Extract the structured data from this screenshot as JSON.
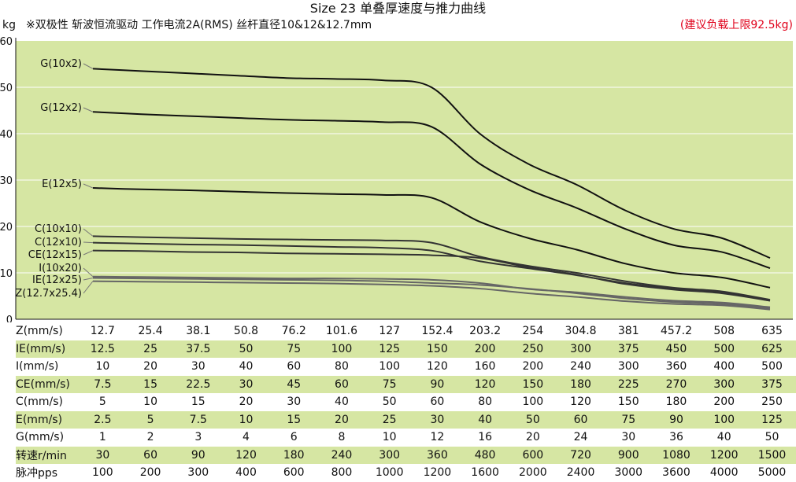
{
  "chart_data": {
    "type": "line",
    "title": "Size 23 单叠厚速度与推力曲线",
    "subtitle": "※双极性 斩波恒流驱动 工作电流2A(RMS) 丝杆直径10&12&12.7mm",
    "note": "(建议负载上限92.5kg)",
    "ylabel": "kg",
    "ylim": [
      0,
      60
    ],
    "yticks": [
      0,
      10,
      20,
      30,
      40,
      50,
      60
    ],
    "grid": true,
    "x_index": [
      0,
      1,
      2,
      3,
      4,
      5,
      6,
      7,
      8,
      9,
      10,
      11,
      12,
      13,
      14
    ],
    "series": [
      {
        "name": "G(10x2)",
        "values": [
          54,
          53.5,
          53,
          52.5,
          52,
          51.8,
          51.5,
          50,
          40,
          33.5,
          29,
          23.5,
          19.5,
          17.5,
          13.2
        ]
      },
      {
        "name": "G(12x2)",
        "values": [
          44.7,
          44.2,
          43.8,
          43.4,
          43,
          42.8,
          42.5,
          41.5,
          33.5,
          28,
          24,
          19.5,
          16,
          14.5,
          11
        ]
      },
      {
        "name": "E(12x5)",
        "values": [
          28.3,
          28,
          27.8,
          27.5,
          27.2,
          27,
          26.8,
          26.2,
          21,
          17.5,
          15,
          12,
          10,
          9,
          6.8
        ]
      },
      {
        "name": "C(10x10)",
        "values": [
          17.9,
          17.7,
          17.5,
          17.3,
          17.2,
          17.1,
          17,
          16.5,
          13.5,
          11.5,
          10,
          8.2,
          6.8,
          6,
          4.2
        ]
      },
      {
        "name": "C(12x10)",
        "values": [
          16.5,
          16.3,
          16.1,
          16,
          15.8,
          15.6,
          15.4,
          14.8,
          12.5,
          11,
          9.5,
          7.8,
          6.6,
          5.8,
          4
        ]
      },
      {
        "name": "CE(12x15)",
        "values": [
          14.8,
          14.7,
          14.5,
          14.4,
          14.2,
          14.1,
          14,
          13.8,
          13.2,
          11.2,
          9.6,
          7.6,
          6.4,
          5.6,
          4
        ]
      },
      {
        "name": "I(10x20)",
        "values": [
          9.2,
          9.1,
          9,
          8.9,
          8.8,
          8.8,
          8.7,
          8.5,
          7.8,
          6.5,
          5.8,
          4.8,
          4,
          3.6,
          2.6
        ]
      },
      {
        "name": "IE(12x25)",
        "values": [
          8.9,
          8.8,
          8.7,
          8.6,
          8.5,
          8.4,
          8.2,
          7.8,
          7.4,
          6.6,
          5.6,
          4.5,
          3.7,
          3.3,
          2.4
        ]
      },
      {
        "name": "Z(12.7x25.4)",
        "values": [
          8.2,
          8.1,
          8,
          7.9,
          7.8,
          7.7,
          7.5,
          7.2,
          6.6,
          5.6,
          4.8,
          3.9,
          3.3,
          3,
          2.1
        ]
      }
    ],
    "table": [
      {
        "label": "Z(mm/s)",
        "values": [
          "12.7",
          "25.4",
          "38.1",
          "50.8",
          "76.2",
          "101.6",
          "127",
          "152.4",
          "203.2",
          "254",
          "304.8",
          "381",
          "457.2",
          "508",
          "635"
        ]
      },
      {
        "label": "IE(mm/s)",
        "values": [
          "12.5",
          "25",
          "37.5",
          "50",
          "75",
          "100",
          "125",
          "150",
          "200",
          "250",
          "300",
          "375",
          "450",
          "500",
          "625"
        ]
      },
      {
        "label": "I(mm/s)",
        "values": [
          "10",
          "20",
          "30",
          "40",
          "60",
          "80",
          "100",
          "120",
          "160",
          "200",
          "240",
          "300",
          "360",
          "400",
          "500"
        ]
      },
      {
        "label": "CE(mm/s)",
        "values": [
          "7.5",
          "15",
          "22.5",
          "30",
          "45",
          "60",
          "75",
          "90",
          "120",
          "150",
          "180",
          "225",
          "270",
          "300",
          "375"
        ]
      },
      {
        "label": "C(mm/s)",
        "values": [
          "5",
          "10",
          "15",
          "20",
          "30",
          "40",
          "50",
          "60",
          "80",
          "100",
          "120",
          "150",
          "180",
          "200",
          "250"
        ]
      },
      {
        "label": "E(mm/s)",
        "values": [
          "2.5",
          "5",
          "7.5",
          "10",
          "15",
          "20",
          "25",
          "30",
          "40",
          "50",
          "60",
          "75",
          "90",
          "100",
          "125"
        ]
      },
      {
        "label": "G(mm/s)",
        "values": [
          "1",
          "2",
          "3",
          "4",
          "6",
          "8",
          "10",
          "12",
          "16",
          "20",
          "24",
          "30",
          "36",
          "40",
          "50"
        ]
      },
      {
        "label": "转速r/min",
        "values": [
          "30",
          "60",
          "90",
          "120",
          "180",
          "240",
          "300",
          "360",
          "480",
          "600",
          "720",
          "900",
          "1080",
          "1200",
          "1500"
        ]
      },
      {
        "label": "脉冲pps",
        "values": [
          "100",
          "200",
          "300",
          "400",
          "600",
          "800",
          "1000",
          "1200",
          "1600",
          "2000",
          "2400",
          "3000",
          "3600",
          "4000",
          "5000"
        ]
      }
    ],
    "colors": {
      "plot_bg": "#d6e6a3",
      "grid": "#ffffff",
      "line_dark": "#111111",
      "line_gray": "#666666",
      "note": "#e0001a"
    }
  }
}
